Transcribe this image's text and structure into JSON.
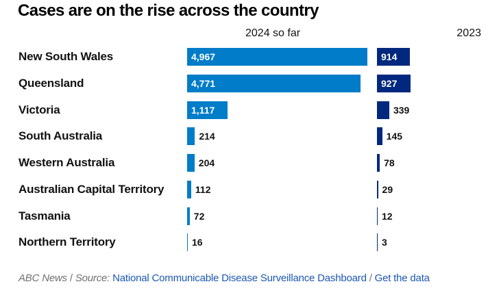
{
  "chart_data": {
    "type": "bar",
    "orientation": "horizontal",
    "title": "Cases are on the rise across the country",
    "categories": [
      "New South Wales",
      "Queensland",
      "Victoria",
      "South Australia",
      "Western Australia",
      "Australian Capital Territory",
      "Tasmania",
      "Northern Territory"
    ],
    "series": [
      {
        "name": "2024 so far",
        "color": "#007cc8",
        "values": [
          4967,
          4771,
          1117,
          214,
          204,
          112,
          72,
          16
        ],
        "labels": [
          "4,967",
          "4,771",
          "1,117",
          "214",
          "204",
          "112",
          "72",
          "16"
        ]
      },
      {
        "name": "2023",
        "color": "#00287e",
        "values": [
          914,
          927,
          339,
          145,
          78,
          29,
          12,
          3
        ],
        "labels": [
          "914",
          "927",
          "339",
          "145",
          "78",
          "29",
          "12",
          "3"
        ]
      }
    ],
    "xlim": [
      0,
      5000
    ],
    "grid": false,
    "legend": "column-headers"
  },
  "footer": {
    "publisher": "ABC News",
    "sep1": " / ",
    "source_label": "Source:",
    "source_link": "National Communicable Disease Surveillance Dashboard",
    "sep2": " / ",
    "data_link": "Get the data"
  }
}
